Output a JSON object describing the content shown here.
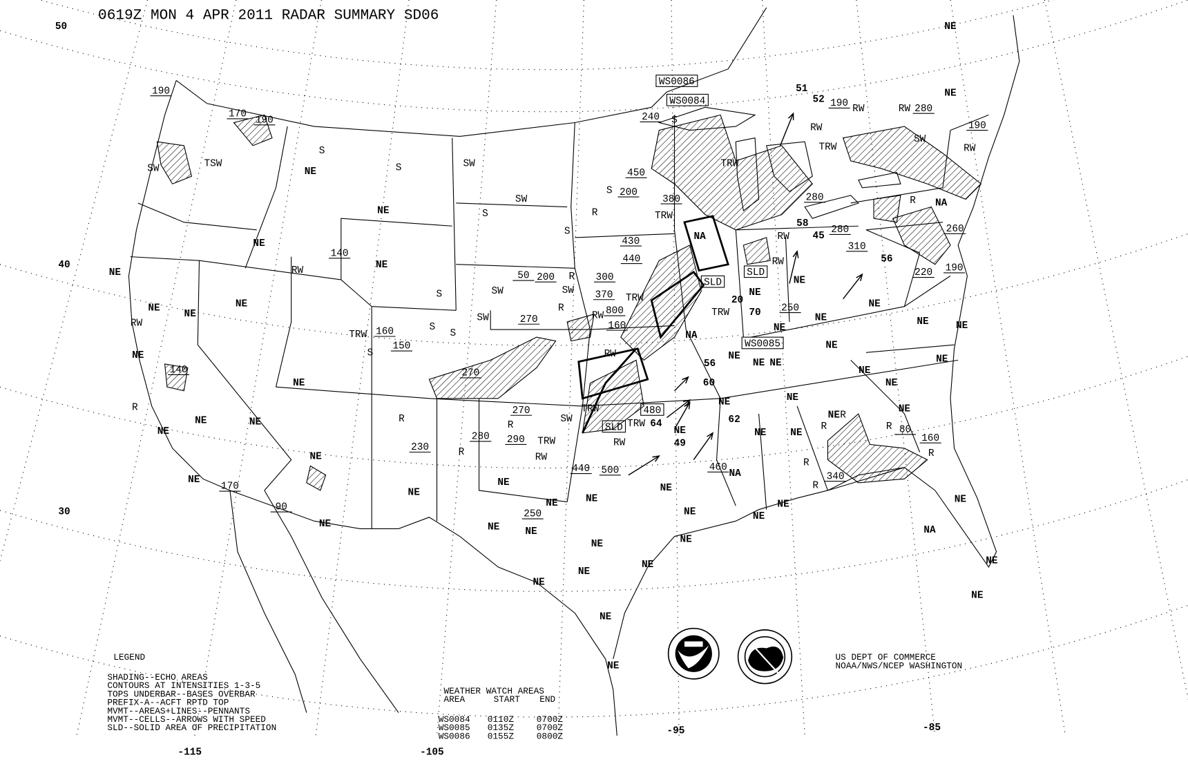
{
  "title": "0619Z MON  4 APR 2011 RADAR SUMMARY SD06",
  "colors": {
    "ink": "#000000",
    "background": "#ffffff"
  },
  "grid": {
    "latitude_labels": [
      "50",
      "40",
      "30"
    ],
    "longitude_labels": [
      "-115",
      "-105",
      "-95",
      "-85"
    ],
    "style": "dotted"
  },
  "legend": {
    "heading": "LEGEND",
    "lines": [
      "SHADING--ECHO AREAS",
      "CONTOURS AT INTENSITIES 1-3-5",
      "TOPS UNDERBAR--BASES OVERBAR",
      "PREFIX-A--ACFT RPTD TOP",
      "MVMT--AREAS+LINES--PENNANTS",
      "MVMT--CELLS--ARROWS WITH SPEED",
      "SLD--SOLID AREA OF PRECIPITATION"
    ]
  },
  "watch_table": {
    "heading": "WEATHER WATCH AREAS",
    "columns": [
      "AREA",
      "START",
      "END"
    ],
    "rows": [
      [
        "WS0084",
        "0110Z",
        "0700Z"
      ],
      [
        "WS0085",
        "0135Z",
        "0700Z"
      ],
      [
        "WS0086",
        "0155Z",
        "0800Z"
      ]
    ]
  },
  "credit": [
    "US DEPT OF COMMERCE",
    "NOAA/NWS/NCEP WASHINGTON"
  ],
  "logos": [
    "NOAA",
    "NATIONAL WEATHER SERVICE"
  ],
  "map_labels": {
    "no_echo": [
      "NE",
      "NE",
      "NE",
      "NE",
      "NE",
      "NE",
      "NE",
      "NE",
      "NE",
      "NE",
      "NE",
      "NE",
      "NE",
      "NE",
      "NE",
      "NE",
      "NE",
      "NE",
      "NE",
      "NE",
      "NE",
      "NE",
      "NE",
      "NE",
      "NE",
      "NE",
      "NE",
      "NE",
      "NE",
      "NE",
      "NE",
      "NE",
      "NE",
      "NE",
      "NE",
      "NE",
      "NE",
      "NE",
      "NE",
      "NE",
      "NE",
      "NE",
      "NE",
      "NE",
      "NE",
      "NE",
      "NE",
      "NE",
      "NE",
      "NE",
      "NE",
      "NE",
      "NE",
      "NE",
      "NE",
      "NE",
      "NE",
      "NE",
      "NE"
    ],
    "not_available": [
      "NA",
      "NA",
      "NA",
      "NA",
      "NA"
    ],
    "tops": [
      "190",
      "170",
      "190",
      "240",
      "450",
      "200",
      "380",
      "430",
      "440",
      "50",
      "200",
      "300",
      "370",
      "800",
      "160",
      "270",
      "160",
      "150",
      "270",
      "270",
      "280",
      "290",
      "230",
      "250",
      "440",
      "500",
      "460",
      "250",
      "280",
      "280",
      "310",
      "260",
      "220",
      "190",
      "190",
      "280",
      "190",
      "140",
      "160",
      "80",
      "90",
      "170",
      "140",
      "340"
    ],
    "speeds": [
      "51",
      "52",
      "58",
      "45",
      "56",
      "70",
      "56",
      "60",
      "62",
      "64",
      "49",
      "20"
    ],
    "precip_types": [
      "S",
      "S",
      "S",
      "S",
      "S",
      "S",
      "S",
      "S",
      "S",
      "S",
      "SW",
      "SW",
      "SW",
      "SW",
      "SW",
      "SW",
      "SW",
      "SW",
      "TSW",
      "R",
      "R",
      "R",
      "R",
      "R",
      "R",
      "R",
      "R",
      "R",
      "R",
      "R",
      "R",
      "R",
      "R",
      "RW",
      "RW",
      "RW",
      "RW",
      "RW",
      "RW",
      "RW",
      "RW",
      "RW",
      "RW",
      "RW",
      "RW",
      "TRW",
      "TRW",
      "TRW",
      "TRW",
      "TRW",
      "TRW",
      "TRW",
      "TRW",
      "TRW"
    ],
    "boxed": [
      "WS0086",
      "WS0084",
      "WS0085",
      "SLD",
      "SLD",
      "SLD",
      "480"
    ]
  }
}
